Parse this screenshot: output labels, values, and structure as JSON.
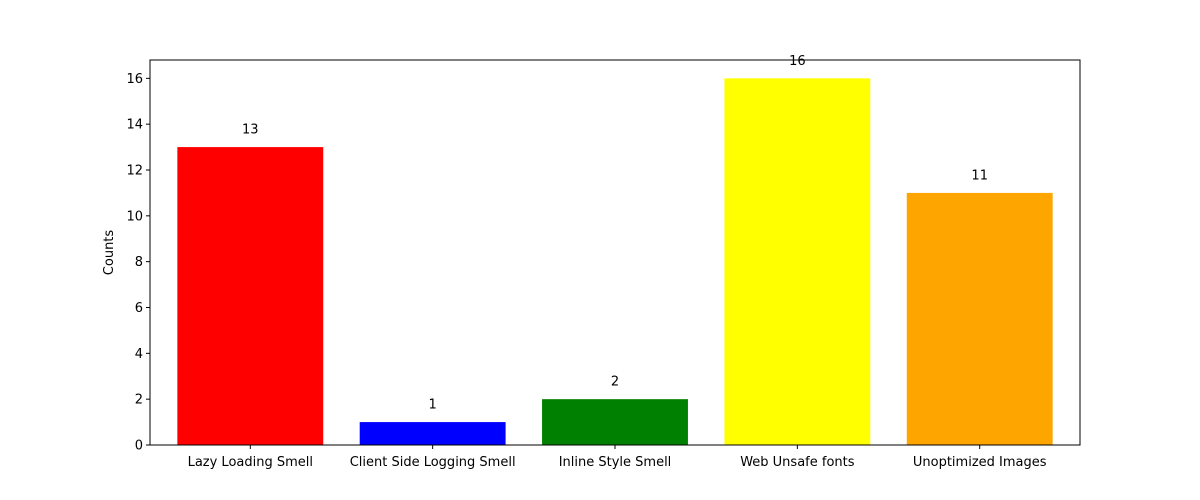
{
  "chart_data": {
    "type": "bar",
    "categories": [
      "Lazy Loading Smell",
      "Client Side Logging Smell",
      "Inline Style Smell",
      "Web Unsafe fonts",
      "Unoptimized Images"
    ],
    "values": [
      13,
      1,
      2,
      16,
      11
    ],
    "colors": [
      "#ff0000",
      "#0000ff",
      "#008000",
      "#ffff00",
      "#ffa500"
    ],
    "data_labels": [
      "13",
      "1",
      "2",
      "16",
      "11"
    ],
    "title": "",
    "xlabel": "",
    "ylabel": "Counts",
    "ylim": [
      0,
      16.8
    ],
    "yticks": [
      0,
      2,
      4,
      6,
      8,
      10,
      12,
      14,
      16
    ],
    "grid": false,
    "legend": "none"
  }
}
